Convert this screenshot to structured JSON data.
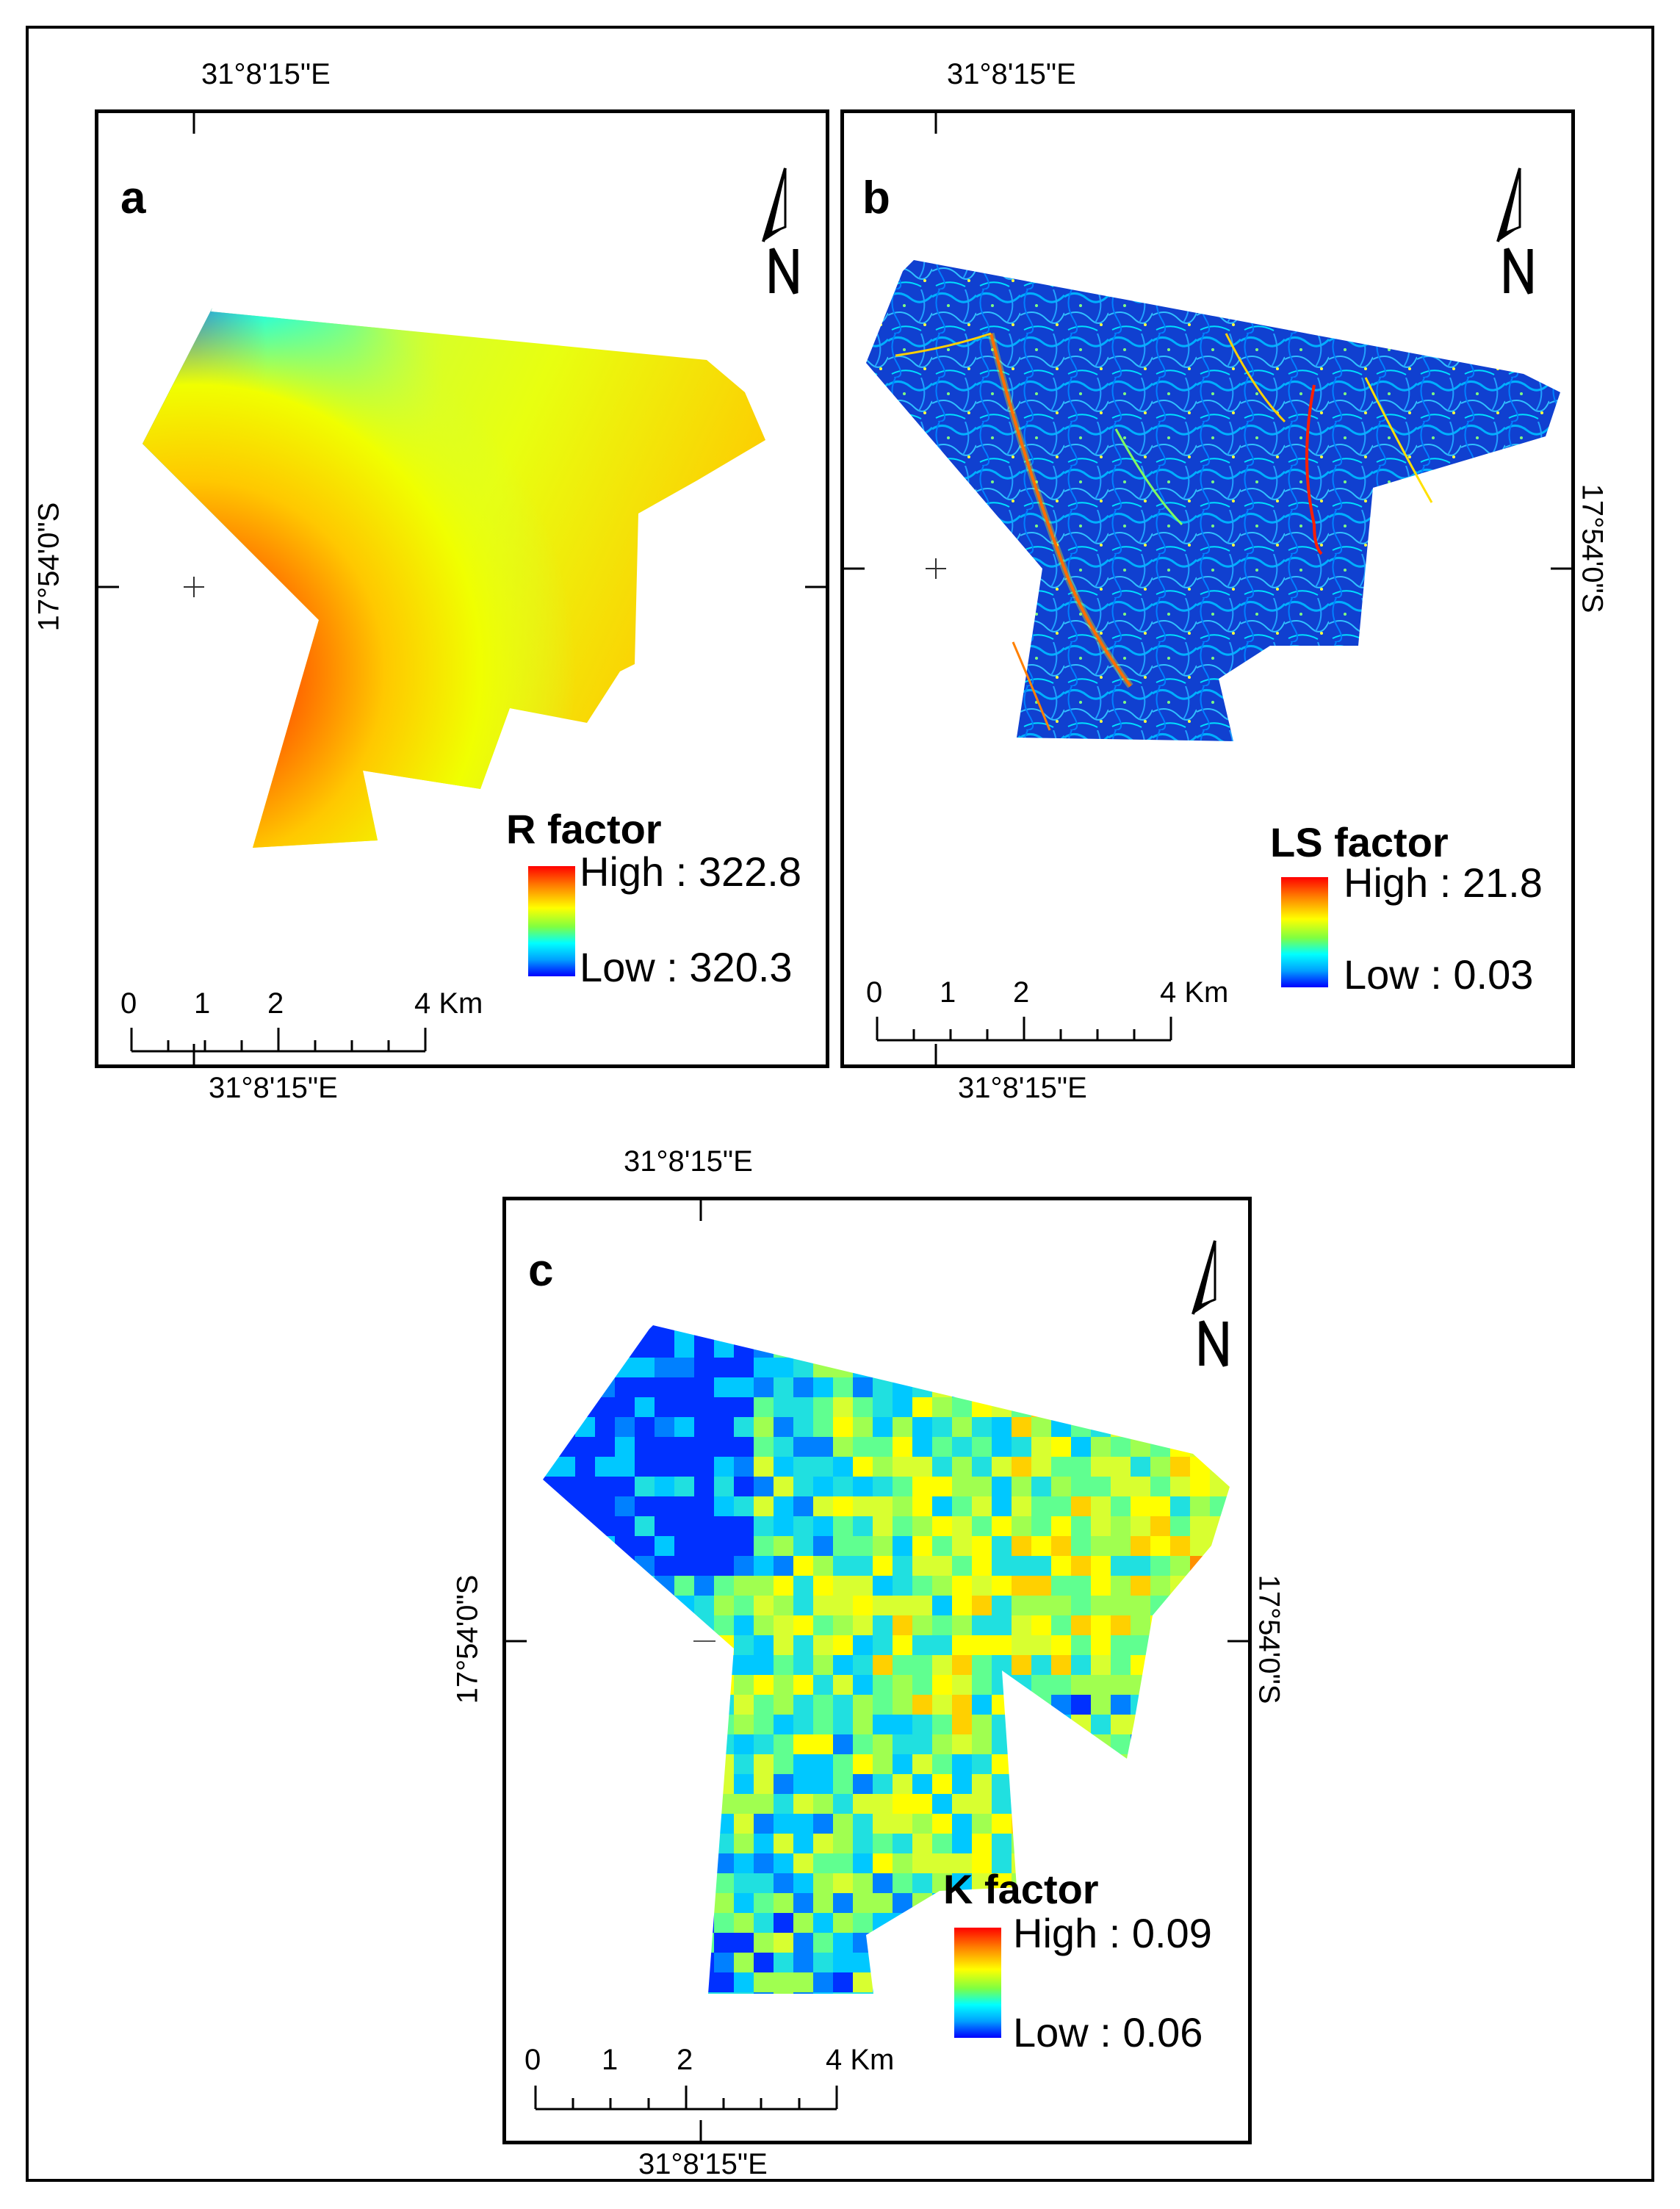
{
  "panels": [
    {
      "id": "a",
      "letter": "a",
      "top_label": "31°8'15\"E",
      "bottom_label": "31°8'15\"E",
      "side_label": "17°54'0\"S",
      "legend": {
        "title": "R factor",
        "high": "High : 322.8",
        "low": "Low : 320.3"
      },
      "scale": {
        "ticks": [
          "0",
          "1",
          "2",
          "4 Km"
        ]
      },
      "style": "smooth"
    },
    {
      "id": "b",
      "letter": "b",
      "top_label": "31°8'15\"E",
      "bottom_label": "31°8'15\"E",
      "side_label": "17°54'0\"S",
      "legend": {
        "title": "LS factor",
        "high": "High : 21.8",
        "low": "Low : 0.03"
      },
      "scale": {
        "ticks": [
          "0",
          "1",
          "2",
          "4 Km"
        ]
      },
      "style": "texture"
    },
    {
      "id": "c",
      "letter": "c",
      "top_label": "31°8'15\"E",
      "bottom_label": "31°8'15\"E",
      "side_label_left": "17°54'0\"S",
      "side_label_right": "17°54'0\"S",
      "legend": {
        "title": "K factor",
        "high": "High : 0.09",
        "low": "Low : 0.06"
      },
      "scale": {
        "ticks": [
          "0",
          "1",
          "2",
          "4 Km"
        ]
      },
      "style": "pixel"
    }
  ],
  "north_arrow": {
    "label": "N"
  },
  "colors": {
    "ramp_high": "#ff0000",
    "ramp_mid": "#ffff00",
    "ramp_low": "#0000ff",
    "frame": "#000000"
  }
}
